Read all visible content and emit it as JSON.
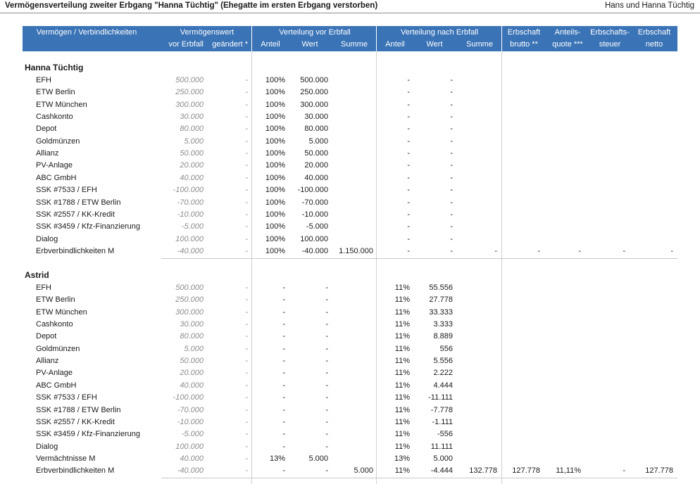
{
  "page": {
    "title": "Vermögensverteilung zweiter Erbgang \"Hanna Tüchtig\" (Ehegatte im ersten Erbgang verstorben)",
    "owner": "Hans und Hanna Tüchtig"
  },
  "header": {
    "col_item": "Vermögen / Verbindlichkeiten",
    "group_value": "Vermögenswert",
    "group_value_sub1": "vor Erbfall",
    "group_value_sub2": "geändert *",
    "group_before": "Verteilung vor Erbfall",
    "group_after": "Verteilung nach Erbfall",
    "sub_share": "Anteil",
    "sub_value": "Wert",
    "sub_sum": "Summe",
    "gross_1": "Erbschaft",
    "gross_2": "brutto **",
    "quota_1": "Anteils-",
    "quota_2": "quote ***",
    "tax_1": "Erbschafts-",
    "tax_2": "steuer",
    "net_1": "Erbschaft",
    "net_2": "netto"
  },
  "sections": [
    {
      "name": "Hanna Tüchtig",
      "rows": [
        {
          "label": "EFH",
          "vor": "500.000",
          "geaendert": "-",
          "vAnteil": "100%",
          "vWert": "500.000",
          "vSumme": "",
          "nAnteil": "-",
          "nWert": "-",
          "nSumme": "",
          "brutto": "",
          "quote": "",
          "steuer": "",
          "netto": ""
        },
        {
          "label": "ETW Berlin",
          "vor": "250.000",
          "geaendert": "-",
          "vAnteil": "100%",
          "vWert": "250.000",
          "vSumme": "",
          "nAnteil": "-",
          "nWert": "-",
          "nSumme": "",
          "brutto": "",
          "quote": "",
          "steuer": "",
          "netto": ""
        },
        {
          "label": "ETW München",
          "vor": "300.000",
          "geaendert": "-",
          "vAnteil": "100%",
          "vWert": "300.000",
          "vSumme": "",
          "nAnteil": "-",
          "nWert": "-",
          "nSumme": "",
          "brutto": "",
          "quote": "",
          "steuer": "",
          "netto": ""
        },
        {
          "label": "Cashkonto",
          "vor": "30.000",
          "geaendert": "-",
          "vAnteil": "100%",
          "vWert": "30.000",
          "vSumme": "",
          "nAnteil": "-",
          "nWert": "-",
          "nSumme": "",
          "brutto": "",
          "quote": "",
          "steuer": "",
          "netto": ""
        },
        {
          "label": "Depot",
          "vor": "80.000",
          "geaendert": "-",
          "vAnteil": "100%",
          "vWert": "80.000",
          "vSumme": "",
          "nAnteil": "-",
          "nWert": "-",
          "nSumme": "",
          "brutto": "",
          "quote": "",
          "steuer": "",
          "netto": ""
        },
        {
          "label": "Goldmünzen",
          "vor": "5.000",
          "geaendert": "-",
          "vAnteil": "100%",
          "vWert": "5.000",
          "vSumme": "",
          "nAnteil": "-",
          "nWert": "-",
          "nSumme": "",
          "brutto": "",
          "quote": "",
          "steuer": "",
          "netto": ""
        },
        {
          "label": "Allianz",
          "vor": "50.000",
          "geaendert": "-",
          "vAnteil": "100%",
          "vWert": "50.000",
          "vSumme": "",
          "nAnteil": "-",
          "nWert": "-",
          "nSumme": "",
          "brutto": "",
          "quote": "",
          "steuer": "",
          "netto": ""
        },
        {
          "label": "PV-Anlage",
          "vor": "20.000",
          "geaendert": "-",
          "vAnteil": "100%",
          "vWert": "20.000",
          "vSumme": "",
          "nAnteil": "-",
          "nWert": "-",
          "nSumme": "",
          "brutto": "",
          "quote": "",
          "steuer": "",
          "netto": ""
        },
        {
          "label": "ABC GmbH",
          "vor": "40.000",
          "geaendert": "-",
          "vAnteil": "100%",
          "vWert": "40.000",
          "vSumme": "",
          "nAnteil": "-",
          "nWert": "-",
          "nSumme": "",
          "brutto": "",
          "quote": "",
          "steuer": "",
          "netto": ""
        },
        {
          "label": "SSK #7533 / EFH",
          "vor": "-100.000",
          "geaendert": "-",
          "vAnteil": "100%",
          "vWert": "-100.000",
          "vSumme": "",
          "nAnteil": "-",
          "nWert": "-",
          "nSumme": "",
          "brutto": "",
          "quote": "",
          "steuer": "",
          "netto": ""
        },
        {
          "label": "SSK #1788 / ETW Berlin",
          "vor": "-70.000",
          "geaendert": "-",
          "vAnteil": "100%",
          "vWert": "-70.000",
          "vSumme": "",
          "nAnteil": "-",
          "nWert": "-",
          "nSumme": "",
          "brutto": "",
          "quote": "",
          "steuer": "",
          "netto": ""
        },
        {
          "label": "SSK #2557 / KK-Kredit",
          "vor": "-10.000",
          "geaendert": "-",
          "vAnteil": "100%",
          "vWert": "-10.000",
          "vSumme": "",
          "nAnteil": "-",
          "nWert": "-",
          "nSumme": "",
          "brutto": "",
          "quote": "",
          "steuer": "",
          "netto": ""
        },
        {
          "label": "SSK #3459 / Kfz-Finanzierung",
          "vor": "-5.000",
          "geaendert": "-",
          "vAnteil": "100%",
          "vWert": "-5.000",
          "vSumme": "",
          "nAnteil": "-",
          "nWert": "-",
          "nSumme": "",
          "brutto": "",
          "quote": "",
          "steuer": "",
          "netto": ""
        },
        {
          "label": "Dialog",
          "vor": "100.000",
          "geaendert": "-",
          "vAnteil": "100%",
          "vWert": "100.000",
          "vSumme": "",
          "nAnteil": "-",
          "nWert": "-",
          "nSumme": "",
          "brutto": "",
          "quote": "",
          "steuer": "",
          "netto": ""
        },
        {
          "label": "Erbverbindlichkeiten M",
          "vor": "-40.000",
          "geaendert": "-",
          "vAnteil": "100%",
          "vWert": "-40.000",
          "vSumme": "1.150.000",
          "nAnteil": "-",
          "nWert": "-",
          "nSumme": "-",
          "brutto": "-",
          "quote": "-",
          "steuer": "-",
          "netto": "-"
        }
      ]
    },
    {
      "name": "Astrid",
      "rows": [
        {
          "label": "EFH",
          "vor": "500.000",
          "geaendert": "-",
          "vAnteil": "-",
          "vWert": "-",
          "vSumme": "",
          "nAnteil": "11%",
          "nWert": "55.556",
          "nSumme": "",
          "brutto": "",
          "quote": "",
          "steuer": "",
          "netto": ""
        },
        {
          "label": "ETW Berlin",
          "vor": "250.000",
          "geaendert": "-",
          "vAnteil": "-",
          "vWert": "-",
          "vSumme": "",
          "nAnteil": "11%",
          "nWert": "27.778",
          "nSumme": "",
          "brutto": "",
          "quote": "",
          "steuer": "",
          "netto": ""
        },
        {
          "label": "ETW München",
          "vor": "300.000",
          "geaendert": "-",
          "vAnteil": "-",
          "vWert": "-",
          "vSumme": "",
          "nAnteil": "11%",
          "nWert": "33.333",
          "nSumme": "",
          "brutto": "",
          "quote": "",
          "steuer": "",
          "netto": ""
        },
        {
          "label": "Cashkonto",
          "vor": "30.000",
          "geaendert": "-",
          "vAnteil": "-",
          "vWert": "-",
          "vSumme": "",
          "nAnteil": "11%",
          "nWert": "3.333",
          "nSumme": "",
          "brutto": "",
          "quote": "",
          "steuer": "",
          "netto": ""
        },
        {
          "label": "Depot",
          "vor": "80.000",
          "geaendert": "-",
          "vAnteil": "-",
          "vWert": "-",
          "vSumme": "",
          "nAnteil": "11%",
          "nWert": "8.889",
          "nSumme": "",
          "brutto": "",
          "quote": "",
          "steuer": "",
          "netto": ""
        },
        {
          "label": "Goldmünzen",
          "vor": "5.000",
          "geaendert": "-",
          "vAnteil": "-",
          "vWert": "-",
          "vSumme": "",
          "nAnteil": "11%",
          "nWert": "556",
          "nSumme": "",
          "brutto": "",
          "quote": "",
          "steuer": "",
          "netto": ""
        },
        {
          "label": "Allianz",
          "vor": "50.000",
          "geaendert": "-",
          "vAnteil": "-",
          "vWert": "-",
          "vSumme": "",
          "nAnteil": "11%",
          "nWert": "5.556",
          "nSumme": "",
          "brutto": "",
          "quote": "",
          "steuer": "",
          "netto": ""
        },
        {
          "label": "PV-Anlage",
          "vor": "20.000",
          "geaendert": "-",
          "vAnteil": "-",
          "vWert": "-",
          "vSumme": "",
          "nAnteil": "11%",
          "nWert": "2.222",
          "nSumme": "",
          "brutto": "",
          "quote": "",
          "steuer": "",
          "netto": ""
        },
        {
          "label": "ABC GmbH",
          "vor": "40.000",
          "geaendert": "-",
          "vAnteil": "-",
          "vWert": "-",
          "vSumme": "",
          "nAnteil": "11%",
          "nWert": "4.444",
          "nSumme": "",
          "brutto": "",
          "quote": "",
          "steuer": "",
          "netto": ""
        },
        {
          "label": "SSK #7533 / EFH",
          "vor": "-100.000",
          "geaendert": "-",
          "vAnteil": "-",
          "vWert": "-",
          "vSumme": "",
          "nAnteil": "11%",
          "nWert": "-11.111",
          "nSumme": "",
          "brutto": "",
          "quote": "",
          "steuer": "",
          "netto": ""
        },
        {
          "label": "SSK #1788 / ETW Berlin",
          "vor": "-70.000",
          "geaendert": "-",
          "vAnteil": "-",
          "vWert": "-",
          "vSumme": "",
          "nAnteil": "11%",
          "nWert": "-7.778",
          "nSumme": "",
          "brutto": "",
          "quote": "",
          "steuer": "",
          "netto": ""
        },
        {
          "label": "SSK #2557 / KK-Kredit",
          "vor": "-10.000",
          "geaendert": "-",
          "vAnteil": "-",
          "vWert": "-",
          "vSumme": "",
          "nAnteil": "11%",
          "nWert": "-1.111",
          "nSumme": "",
          "brutto": "",
          "quote": "",
          "steuer": "",
          "netto": ""
        },
        {
          "label": "SSK #3459 / Kfz-Finanzierung",
          "vor": "-5.000",
          "geaendert": "-",
          "vAnteil": "-",
          "vWert": "-",
          "vSumme": "",
          "nAnteil": "11%",
          "nWert": "-556",
          "nSumme": "",
          "brutto": "",
          "quote": "",
          "steuer": "",
          "netto": ""
        },
        {
          "label": "Dialog",
          "vor": "100.000",
          "geaendert": "-",
          "vAnteil": "-",
          "vWert": "-",
          "vSumme": "",
          "nAnteil": "11%",
          "nWert": "11.111",
          "nSumme": "",
          "brutto": "",
          "quote": "",
          "steuer": "",
          "netto": ""
        },
        {
          "label": "Vermächtnisse M",
          "vor": "40.000",
          "geaendert": "-",
          "vAnteil": "13%",
          "vWert": "5.000",
          "vSumme": "",
          "nAnteil": "13%",
          "nWert": "5.000",
          "nSumme": "",
          "brutto": "",
          "quote": "",
          "steuer": "",
          "netto": ""
        },
        {
          "label": "Erbverbindlichkeiten M",
          "vor": "-40.000",
          "geaendert": "-",
          "vAnteil": "-",
          "vWert": "-",
          "vSumme": "5.000",
          "nAnteil": "11%",
          "nWert": "-4.444",
          "nSumme": "132.778",
          "brutto": "127.778",
          "quote": "11,11%",
          "steuer": "-",
          "netto": "127.778"
        }
      ]
    }
  ]
}
